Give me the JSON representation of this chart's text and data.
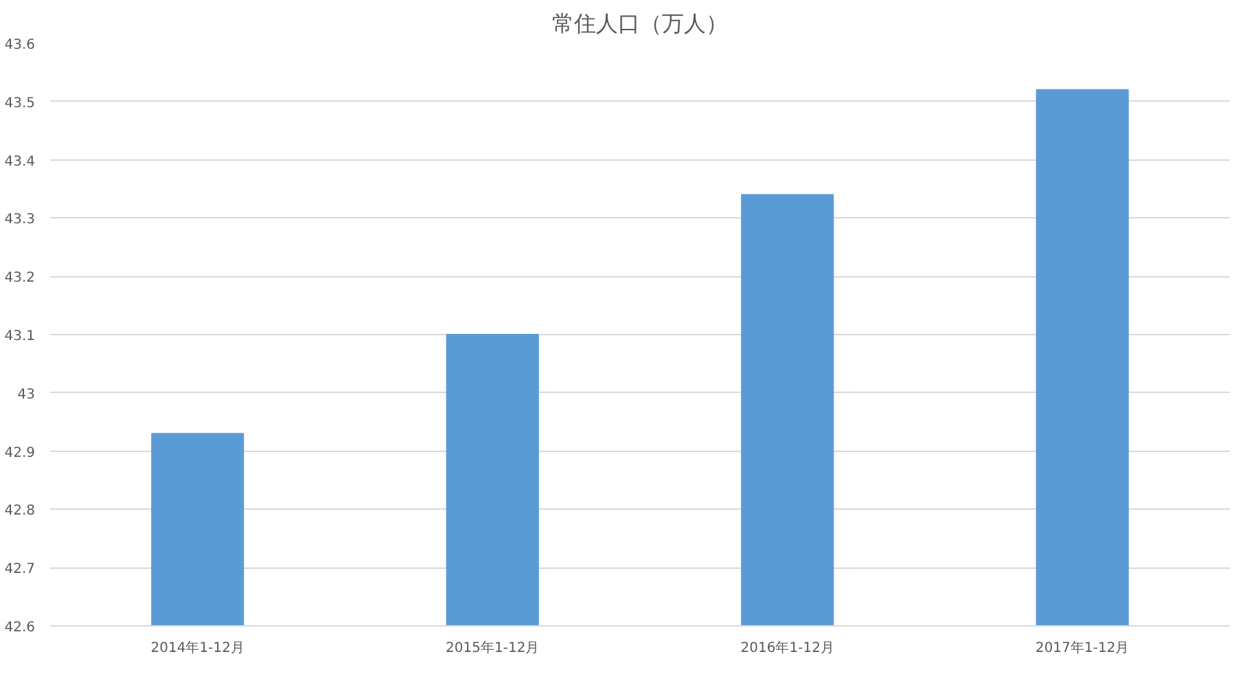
{
  "chart_data": {
    "type": "bar",
    "title": "常住人口（万人）",
    "categories": [
      "2014年1-12月",
      "2015年1-12月",
      "2016年1-12月",
      "2017年1-12月"
    ],
    "values": [
      42.93,
      43.1,
      43.34,
      43.52
    ],
    "color": "#5b9bd5",
    "ylim": [
      42.6,
      43.6
    ],
    "yticks": [
      42.6,
      42.7,
      42.8,
      42.9,
      43,
      43.1,
      43.2,
      43.3,
      43.4,
      43.5,
      43.6
    ],
    "grid": "y"
  }
}
